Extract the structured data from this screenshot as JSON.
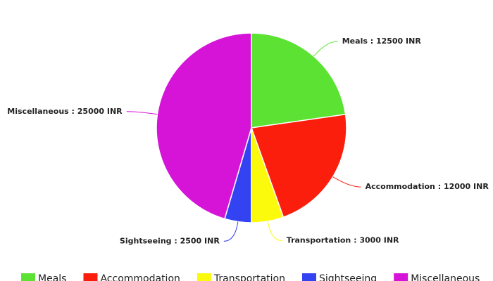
{
  "chart_data": {
    "type": "pie",
    "categories": [
      "Meals",
      "Accommodation",
      "Transportation",
      "Sightseeing",
      "Miscellaneous"
    ],
    "values": [
      12500,
      12000,
      3000,
      2500,
      25000
    ],
    "value_labels": [
      "Meals : 12500 INR",
      "Accommodation : 12000 INR",
      "Transportation : 3000 INR",
      "Sightseeing : 2500 INR",
      "Miscellaneous : 25000 INR"
    ],
    "colors": [
      "#5ce233",
      "#fb1e0c",
      "#fbf90c",
      "#3343f2",
      "#d514d8"
    ],
    "legend": "bottom"
  }
}
